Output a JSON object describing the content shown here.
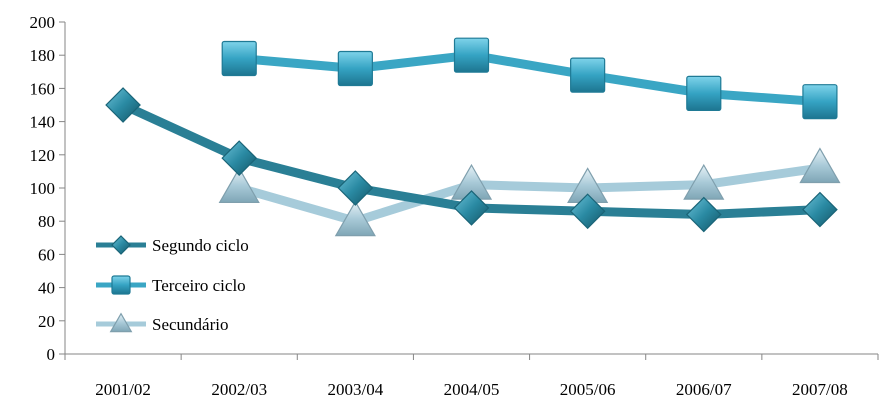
{
  "chart_data": {
    "type": "line",
    "categories": [
      "2001/02",
      "2002/03",
      "2003/04",
      "2004/05",
      "2005/06",
      "2006/07",
      "2007/08"
    ],
    "series": [
      {
        "name": "Segundo ciclo",
        "marker": "diamond",
        "color": "#2a7f95",
        "values": [
          150,
          118,
          100,
          88,
          86,
          84,
          87
        ]
      },
      {
        "name": "Terceiro ciclo",
        "marker": "square",
        "color": "#3aa6c4",
        "values": [
          null,
          178,
          172,
          180,
          168,
          157,
          152
        ]
      },
      {
        "name": "Secundário",
        "marker": "triangle",
        "color": "#a6cbda",
        "values": [
          null,
          100,
          80,
          102,
          100,
          102,
          112
        ]
      }
    ],
    "ylim": [
      0,
      200
    ],
    "yticks": [
      0,
      20,
      40,
      60,
      80,
      100,
      120,
      140,
      160,
      180,
      200
    ],
    "grid": false,
    "legend_position": "bottom-left",
    "title": "",
    "xlabel": "",
    "ylabel": ""
  }
}
